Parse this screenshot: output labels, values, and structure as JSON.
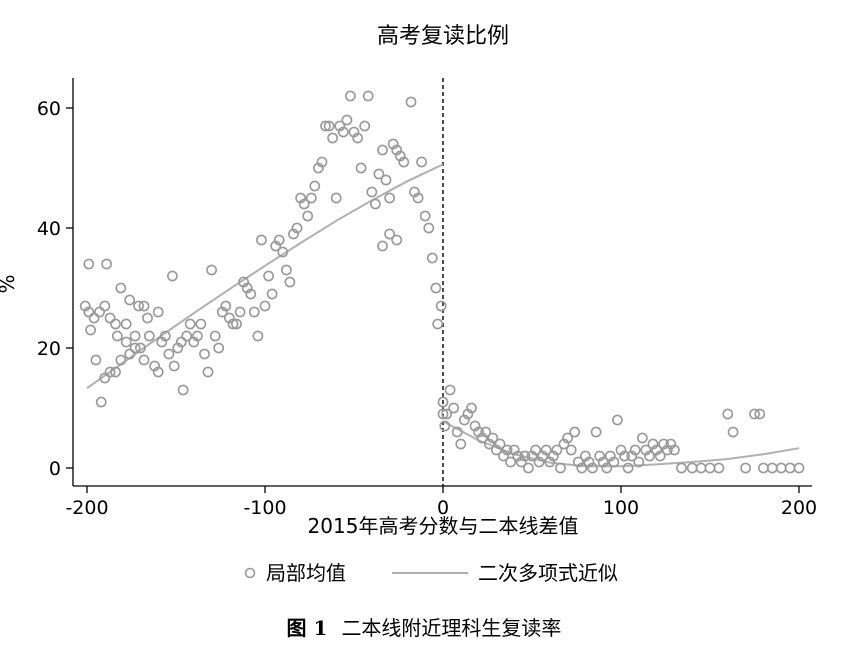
{
  "figure": {
    "label": "图 1",
    "number": "1",
    "text": "二本线附近理科生复读率"
  },
  "chart_data": {
    "type": "scatter",
    "title": "高考复读比例",
    "xlabel": "2015年高考分数与二本线差值",
    "ylabel": "%",
    "xlim": [
      -205,
      205
    ],
    "ylim": [
      -2,
      66
    ],
    "xticks": [
      -200,
      -100,
      0,
      100,
      200
    ],
    "xtick_labels": [
      "-200",
      "-100",
      "0",
      "100",
      "200"
    ],
    "yticks": [
      0,
      20,
      40,
      60
    ],
    "ytick_labels": [
      "0",
      "20",
      "40",
      "60"
    ],
    "cutoff": 0,
    "grid": false,
    "legend_position": "bottom",
    "colors": {
      "markers": "#999999",
      "fit": "#b0b0b0",
      "axis": "#000000",
      "cutoff_line": "#000000"
    },
    "series": [
      {
        "name": "局部均值",
        "kind": "scatter",
        "points": [
          [
            -199,
            34
          ],
          [
            -189,
            34
          ],
          [
            -201,
            27
          ],
          [
            -199,
            26
          ],
          [
            -196,
            25
          ],
          [
            -193,
            26
          ],
          [
            -198,
            23
          ],
          [
            -195,
            18
          ],
          [
            -190,
            27
          ],
          [
            -187,
            25
          ],
          [
            -184,
            24
          ],
          [
            -183,
            22
          ],
          [
            -181,
            30
          ],
          [
            -178,
            24
          ],
          [
            -176,
            28
          ],
          [
            -173,
            22
          ],
          [
            -171,
            27
          ],
          [
            -168,
            27
          ],
          [
            -166,
            25
          ],
          [
            -160,
            26
          ],
          [
            -152,
            32
          ],
          [
            -192,
            11
          ],
          [
            -190,
            15
          ],
          [
            -187,
            16
          ],
          [
            -184,
            16
          ],
          [
            -181,
            18
          ],
          [
            -178,
            21
          ],
          [
            -176,
            19
          ],
          [
            -173,
            20
          ],
          [
            -170,
            20
          ],
          [
            -168,
            18
          ],
          [
            -165,
            22
          ],
          [
            -162,
            17
          ],
          [
            -160,
            16
          ],
          [
            -158,
            21
          ],
          [
            -156,
            22
          ],
          [
            -154,
            19
          ],
          [
            -151,
            17
          ],
          [
            -149,
            20
          ],
          [
            -147,
            21
          ],
          [
            -146,
            13
          ],
          [
            -144,
            22
          ],
          [
            -142,
            24
          ],
          [
            -140,
            21
          ],
          [
            -138,
            22
          ],
          [
            -136,
            24
          ],
          [
            -134,
            19
          ],
          [
            -132,
            16
          ],
          [
            -130,
            33
          ],
          [
            -128,
            22
          ],
          [
            -126,
            20
          ],
          [
            -124,
            26
          ],
          [
            -122,
            27
          ],
          [
            -120,
            25
          ],
          [
            -118,
            24
          ],
          [
            -116,
            24
          ],
          [
            -114,
            26
          ],
          [
            -112,
            31
          ],
          [
            -110,
            30
          ],
          [
            -108,
            29
          ],
          [
            -106,
            26
          ],
          [
            -104,
            22
          ],
          [
            -102,
            38
          ],
          [
            -100,
            27
          ],
          [
            -98,
            32
          ],
          [
            -96,
            29
          ],
          [
            -94,
            37
          ],
          [
            -92,
            38
          ],
          [
            -90,
            36
          ],
          [
            -88,
            33
          ],
          [
            -86,
            31
          ],
          [
            -84,
            39
          ],
          [
            -82,
            40
          ],
          [
            -80,
            45
          ],
          [
            -78,
            44
          ],
          [
            -76,
            42
          ],
          [
            -74,
            45
          ],
          [
            -72,
            47
          ],
          [
            -70,
            50
          ],
          [
            -68,
            51
          ],
          [
            -66,
            57
          ],
          [
            -64,
            57
          ],
          [
            -62,
            55
          ],
          [
            -60,
            45
          ],
          [
            -58,
            57
          ],
          [
            -56,
            56
          ],
          [
            -54,
            58
          ],
          [
            -52,
            62
          ],
          [
            -50,
            56
          ],
          [
            -48,
            55
          ],
          [
            -46,
            50
          ],
          [
            -44,
            57
          ],
          [
            -42,
            62
          ],
          [
            -40,
            46
          ],
          [
            -38,
            44
          ],
          [
            -36,
            49
          ],
          [
            -34,
            53
          ],
          [
            -32,
            48
          ],
          [
            -30,
            45
          ],
          [
            -28,
            54
          ],
          [
            -26,
            53
          ],
          [
            -24,
            52
          ],
          [
            -22,
            51
          ],
          [
            -18,
            61
          ],
          [
            -16,
            46
          ],
          [
            -14,
            45
          ],
          [
            -12,
            51
          ],
          [
            -10,
            42
          ],
          [
            -8,
            40
          ],
          [
            -6,
            35
          ],
          [
            -4,
            30
          ],
          [
            -3,
            24
          ],
          [
            -1,
            27
          ],
          [
            -34,
            37
          ],
          [
            -30,
            39
          ],
          [
            -26,
            38
          ],
          [
            0,
            11
          ],
          [
            0,
            9
          ],
          [
            1,
            7
          ],
          [
            2,
            9
          ],
          [
            4,
            13
          ],
          [
            6,
            10
          ],
          [
            8,
            6
          ],
          [
            10,
            4
          ],
          [
            12,
            8
          ],
          [
            14,
            9
          ],
          [
            16,
            10
          ],
          [
            18,
            7
          ],
          [
            20,
            6
          ],
          [
            22,
            5
          ],
          [
            24,
            6
          ],
          [
            26,
            4
          ],
          [
            28,
            5
          ],
          [
            30,
            3
          ],
          [
            32,
            4
          ],
          [
            34,
            2
          ],
          [
            36,
            3
          ],
          [
            38,
            1
          ],
          [
            40,
            3
          ],
          [
            42,
            2
          ],
          [
            44,
            1
          ],
          [
            46,
            2
          ],
          [
            48,
            0
          ],
          [
            50,
            2
          ],
          [
            52,
            3
          ],
          [
            54,
            1
          ],
          [
            56,
            2
          ],
          [
            58,
            3
          ],
          [
            60,
            1
          ],
          [
            62,
            2
          ],
          [
            64,
            3
          ],
          [
            66,
            0
          ],
          [
            68,
            4
          ],
          [
            70,
            5
          ],
          [
            72,
            3
          ],
          [
            74,
            6
          ],
          [
            76,
            1
          ],
          [
            78,
            0
          ],
          [
            80,
            2
          ],
          [
            82,
            1
          ],
          [
            84,
            0
          ],
          [
            86,
            6
          ],
          [
            88,
            2
          ],
          [
            90,
            1
          ],
          [
            92,
            0
          ],
          [
            94,
            2
          ],
          [
            96,
            1
          ],
          [
            98,
            8
          ],
          [
            100,
            3
          ],
          [
            102,
            2
          ],
          [
            104,
            0
          ],
          [
            106,
            2
          ],
          [
            108,
            3
          ],
          [
            110,
            1
          ],
          [
            112,
            5
          ],
          [
            114,
            3
          ],
          [
            116,
            2
          ],
          [
            118,
            4
          ],
          [
            120,
            3
          ],
          [
            122,
            2
          ],
          [
            124,
            4
          ],
          [
            126,
            3
          ],
          [
            128,
            4
          ],
          [
            130,
            3
          ],
          [
            134,
            0
          ],
          [
            140,
            0
          ],
          [
            145,
            0
          ],
          [
            150,
            0
          ],
          [
            155,
            0
          ],
          [
            160,
            9
          ],
          [
            163,
            6
          ],
          [
            170,
            0
          ],
          [
            175,
            9
          ],
          [
            178,
            9
          ],
          [
            180,
            0
          ],
          [
            185,
            0
          ],
          [
            190,
            0
          ],
          [
            195,
            0
          ],
          [
            200,
            0
          ]
        ]
      },
      {
        "name": "二次多项式近似",
        "kind": "line",
        "segments": [
          [
            [
              -200,
              13.3
            ],
            [
              -180,
              17.5
            ],
            [
              -160,
              21.7
            ],
            [
              -140,
              25.8
            ],
            [
              -120,
              29.8
            ],
            [
              -100,
              33.7
            ],
            [
              -80,
              37.5
            ],
            [
              -60,
              41.2
            ],
            [
              -40,
              44.6
            ],
            [
              -20,
              47.8
            ],
            [
              0,
              50.6
            ]
          ],
          [
            [
              0,
              7.8
            ],
            [
              20,
              4.6
            ],
            [
              40,
              2.3
            ],
            [
              60,
              0.9
            ],
            [
              80,
              0.3
            ],
            [
              100,
              0.3
            ],
            [
              120,
              0.6
            ],
            [
              140,
              1.0
            ],
            [
              160,
              1.5
            ],
            [
              180,
              2.3
            ],
            [
              200,
              3.3
            ]
          ]
        ]
      }
    ]
  }
}
